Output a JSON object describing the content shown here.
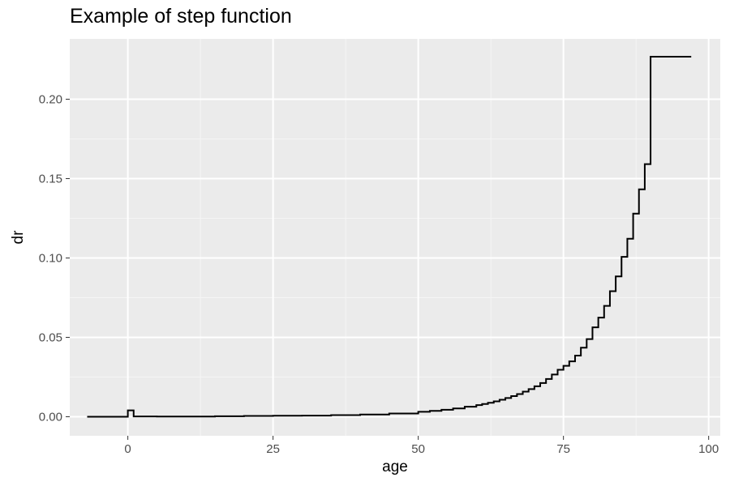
{
  "chart_data": {
    "type": "line",
    "style": "step",
    "title": "Example of step function",
    "xlabel": "age",
    "ylabel": "dr",
    "xlim": [
      -10,
      102
    ],
    "ylim": [
      -0.012,
      0.238
    ],
    "x_ticks": [
      0,
      25,
      50,
      75,
      100
    ],
    "x_tick_labels": [
      "0",
      "25",
      "50",
      "75",
      "100"
    ],
    "y_ticks": [
      0.0,
      0.05,
      0.1,
      0.15,
      0.2
    ],
    "y_tick_labels": [
      "0.00",
      "0.05",
      "0.10",
      "0.15",
      "0.20"
    ],
    "grid": true,
    "legend": "none",
    "colors": {
      "panel_background": "#ebebeb",
      "grid_major": "#ffffff",
      "grid_minor": "#f5f5f5",
      "line": "#000000",
      "tick_text": "#4d4d4d"
    },
    "series": [
      {
        "x": [
          -7,
          0,
          1,
          5,
          10,
          15,
          20,
          25,
          30,
          35,
          40,
          45,
          50,
          52,
          54,
          56,
          58,
          60,
          61,
          62,
          63,
          64,
          65,
          66,
          67,
          68,
          69,
          70,
          71,
          72,
          73,
          74,
          75,
          76,
          77,
          78,
          79,
          80,
          81,
          82,
          83,
          84,
          85,
          86,
          87,
          88,
          89,
          90,
          97
        ],
        "y": [
          0.0,
          0.004,
          0.0002,
          0.0001,
          0.0001,
          0.0003,
          0.0005,
          0.0006,
          0.0007,
          0.001,
          0.0014,
          0.002,
          0.0031,
          0.0037,
          0.0044,
          0.0052,
          0.0063,
          0.0073,
          0.008,
          0.0088,
          0.0097,
          0.0107,
          0.0118,
          0.013,
          0.0143,
          0.0158,
          0.0174,
          0.0192,
          0.0212,
          0.0238,
          0.0266,
          0.0296,
          0.0321,
          0.0349,
          0.0385,
          0.0435,
          0.0489,
          0.0563,
          0.0624,
          0.0698,
          0.0791,
          0.0884,
          0.1007,
          0.1121,
          0.1279,
          0.1432,
          0.1591,
          0.2268,
          0.2268
        ]
      }
    ]
  }
}
